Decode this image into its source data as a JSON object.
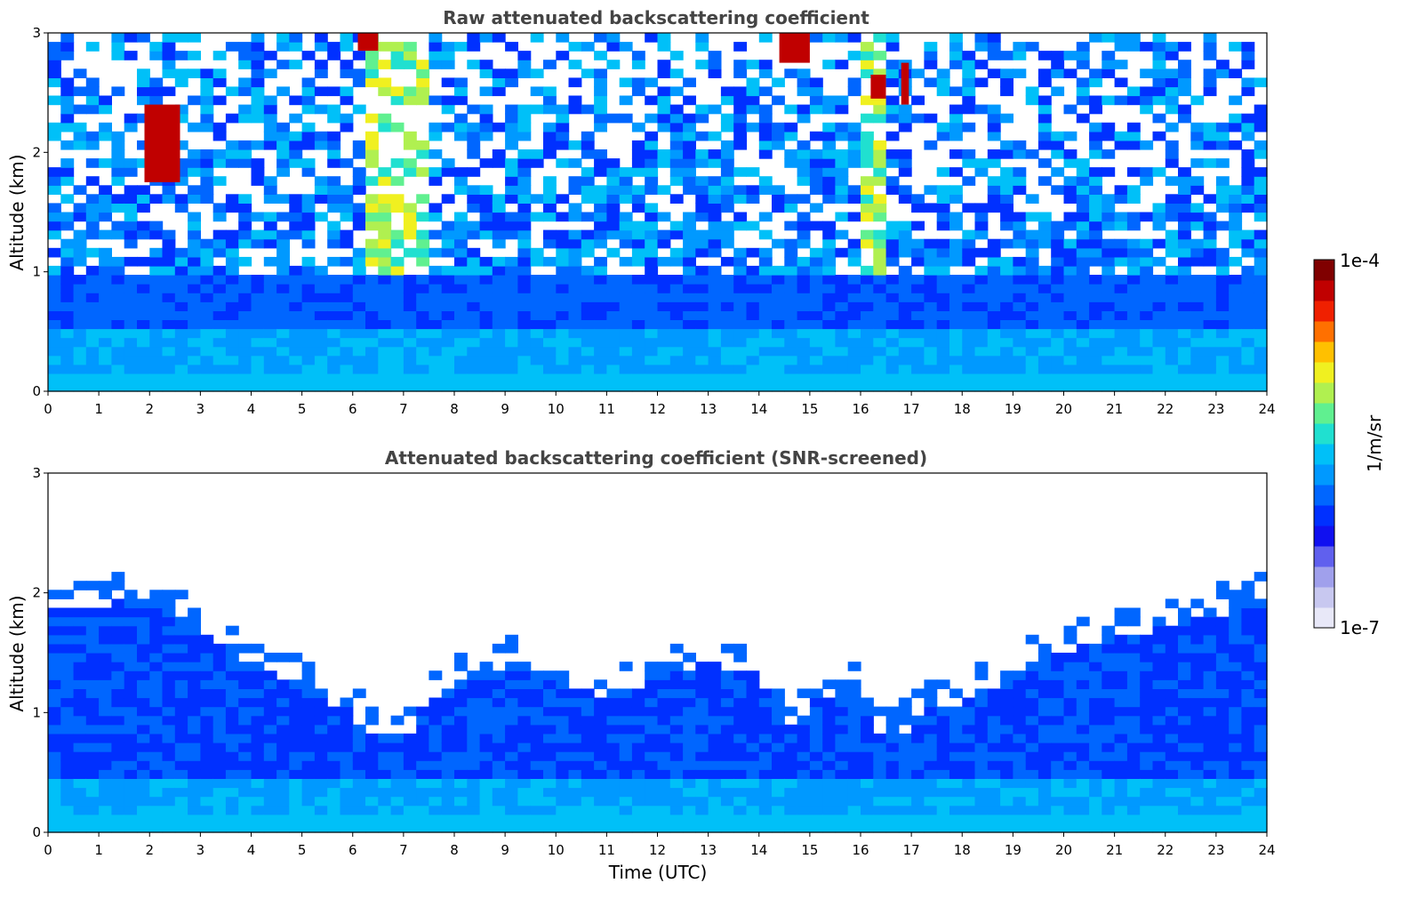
{
  "chart_data": [
    {
      "type": "heatmap",
      "title": "Raw attenuated backscattering coefficient",
      "xlabel": "",
      "ylabel": "Altitude (km)",
      "xlim": [
        0,
        24
      ],
      "ylim": [
        0,
        3
      ],
      "xticks": [
        "0",
        "1",
        "2",
        "3",
        "4",
        "5",
        "6",
        "7",
        "8",
        "9",
        "10",
        "11",
        "12",
        "13",
        "14",
        "15",
        "16",
        "17",
        "18",
        "19",
        "20",
        "21",
        "22",
        "23",
        "24"
      ],
      "yticks": [
        "0",
        "1",
        "2",
        "3"
      ],
      "data_gap_utc": [
        10.9,
        11.02
      ],
      "clouds": [
        {
          "t_start": 1.9,
          "t_end": 2.6,
          "alt_low": 1.75,
          "alt_high": 2.4
        },
        {
          "t_start": 6.1,
          "t_end": 6.5,
          "alt_low": 2.85,
          "alt_high": 3.0
        },
        {
          "t_start": 14.4,
          "t_end": 15.0,
          "alt_low": 2.75,
          "alt_high": 3.0
        },
        {
          "t_start": 16.2,
          "t_end": 16.5,
          "alt_low": 2.45,
          "alt_high": 2.65
        },
        {
          "t_start": 16.8,
          "t_end": 16.95,
          "alt_low": 2.4,
          "alt_high": 2.75
        }
      ]
    },
    {
      "type": "heatmap",
      "title": "Attenuated backscattering coefficient (SNR-screened)",
      "xlabel": "Time (UTC)",
      "ylabel": "Altitude (km)",
      "xlim": [
        0,
        24
      ],
      "ylim": [
        0,
        3
      ],
      "xticks": [
        "0",
        "1",
        "2",
        "3",
        "4",
        "5",
        "6",
        "7",
        "8",
        "9",
        "10",
        "11",
        "12",
        "13",
        "14",
        "15",
        "16",
        "17",
        "18",
        "19",
        "20",
        "21",
        "22",
        "23",
        "24"
      ],
      "yticks": [
        "0",
        "1",
        "2",
        "3"
      ],
      "data_gap_utc": [
        10.9,
        11.02
      ],
      "boundary_layer_top_km": [
        {
          "t": 0,
          "alt": 1.85
        },
        {
          "t": 1,
          "alt": 1.9
        },
        {
          "t": 2,
          "alt": 1.95
        },
        {
          "t": 3,
          "alt": 1.7
        },
        {
          "t": 4,
          "alt": 1.4
        },
        {
          "t": 5,
          "alt": 1.2
        },
        {
          "t": 6,
          "alt": 1.0
        },
        {
          "t": 6.3,
          "alt": 0.8
        },
        {
          "t": 7,
          "alt": 0.7
        },
        {
          "t": 7.3,
          "alt": 1.0
        },
        {
          "t": 8,
          "alt": 1.2
        },
        {
          "t": 9,
          "alt": 1.4
        },
        {
          "t": 10,
          "alt": 1.3
        },
        {
          "t": 11,
          "alt": 1.1
        },
        {
          "t": 12,
          "alt": 1.3
        },
        {
          "t": 13,
          "alt": 1.4
        },
        {
          "t": 14,
          "alt": 1.3
        },
        {
          "t": 14.7,
          "alt": 0.85
        },
        {
          "t": 15,
          "alt": 1.1
        },
        {
          "t": 16,
          "alt": 1.2
        },
        {
          "t": 16.4,
          "alt": 0.8
        },
        {
          "t": 16.9,
          "alt": 0.85
        },
        {
          "t": 17.5,
          "alt": 1.1
        },
        {
          "t": 17.8,
          "alt": 0.95
        },
        {
          "t": 18.2,
          "alt": 1.15
        },
        {
          "t": 19,
          "alt": 1.3
        },
        {
          "t": 20,
          "alt": 1.5
        },
        {
          "t": 21,
          "alt": 1.6
        },
        {
          "t": 22,
          "alt": 1.7
        },
        {
          "t": 23,
          "alt": 1.8
        },
        {
          "t": 24,
          "alt": 1.95
        }
      ]
    }
  ],
  "colorbar": {
    "label": "1/m/sr",
    "max_label": "1e-4",
    "min_label": "1e-7",
    "colors": [
      "#e8e8f8",
      "#c8c8f0",
      "#a0a0ec",
      "#6060ee",
      "#1010f0",
      "#0030ff",
      "#0066ff",
      "#0099ff",
      "#00c0f8",
      "#20e0d0",
      "#60f090",
      "#b0f050",
      "#f0f020",
      "#ffc000",
      "#ff7000",
      "#f02000",
      "#c00000",
      "#800000"
    ]
  }
}
